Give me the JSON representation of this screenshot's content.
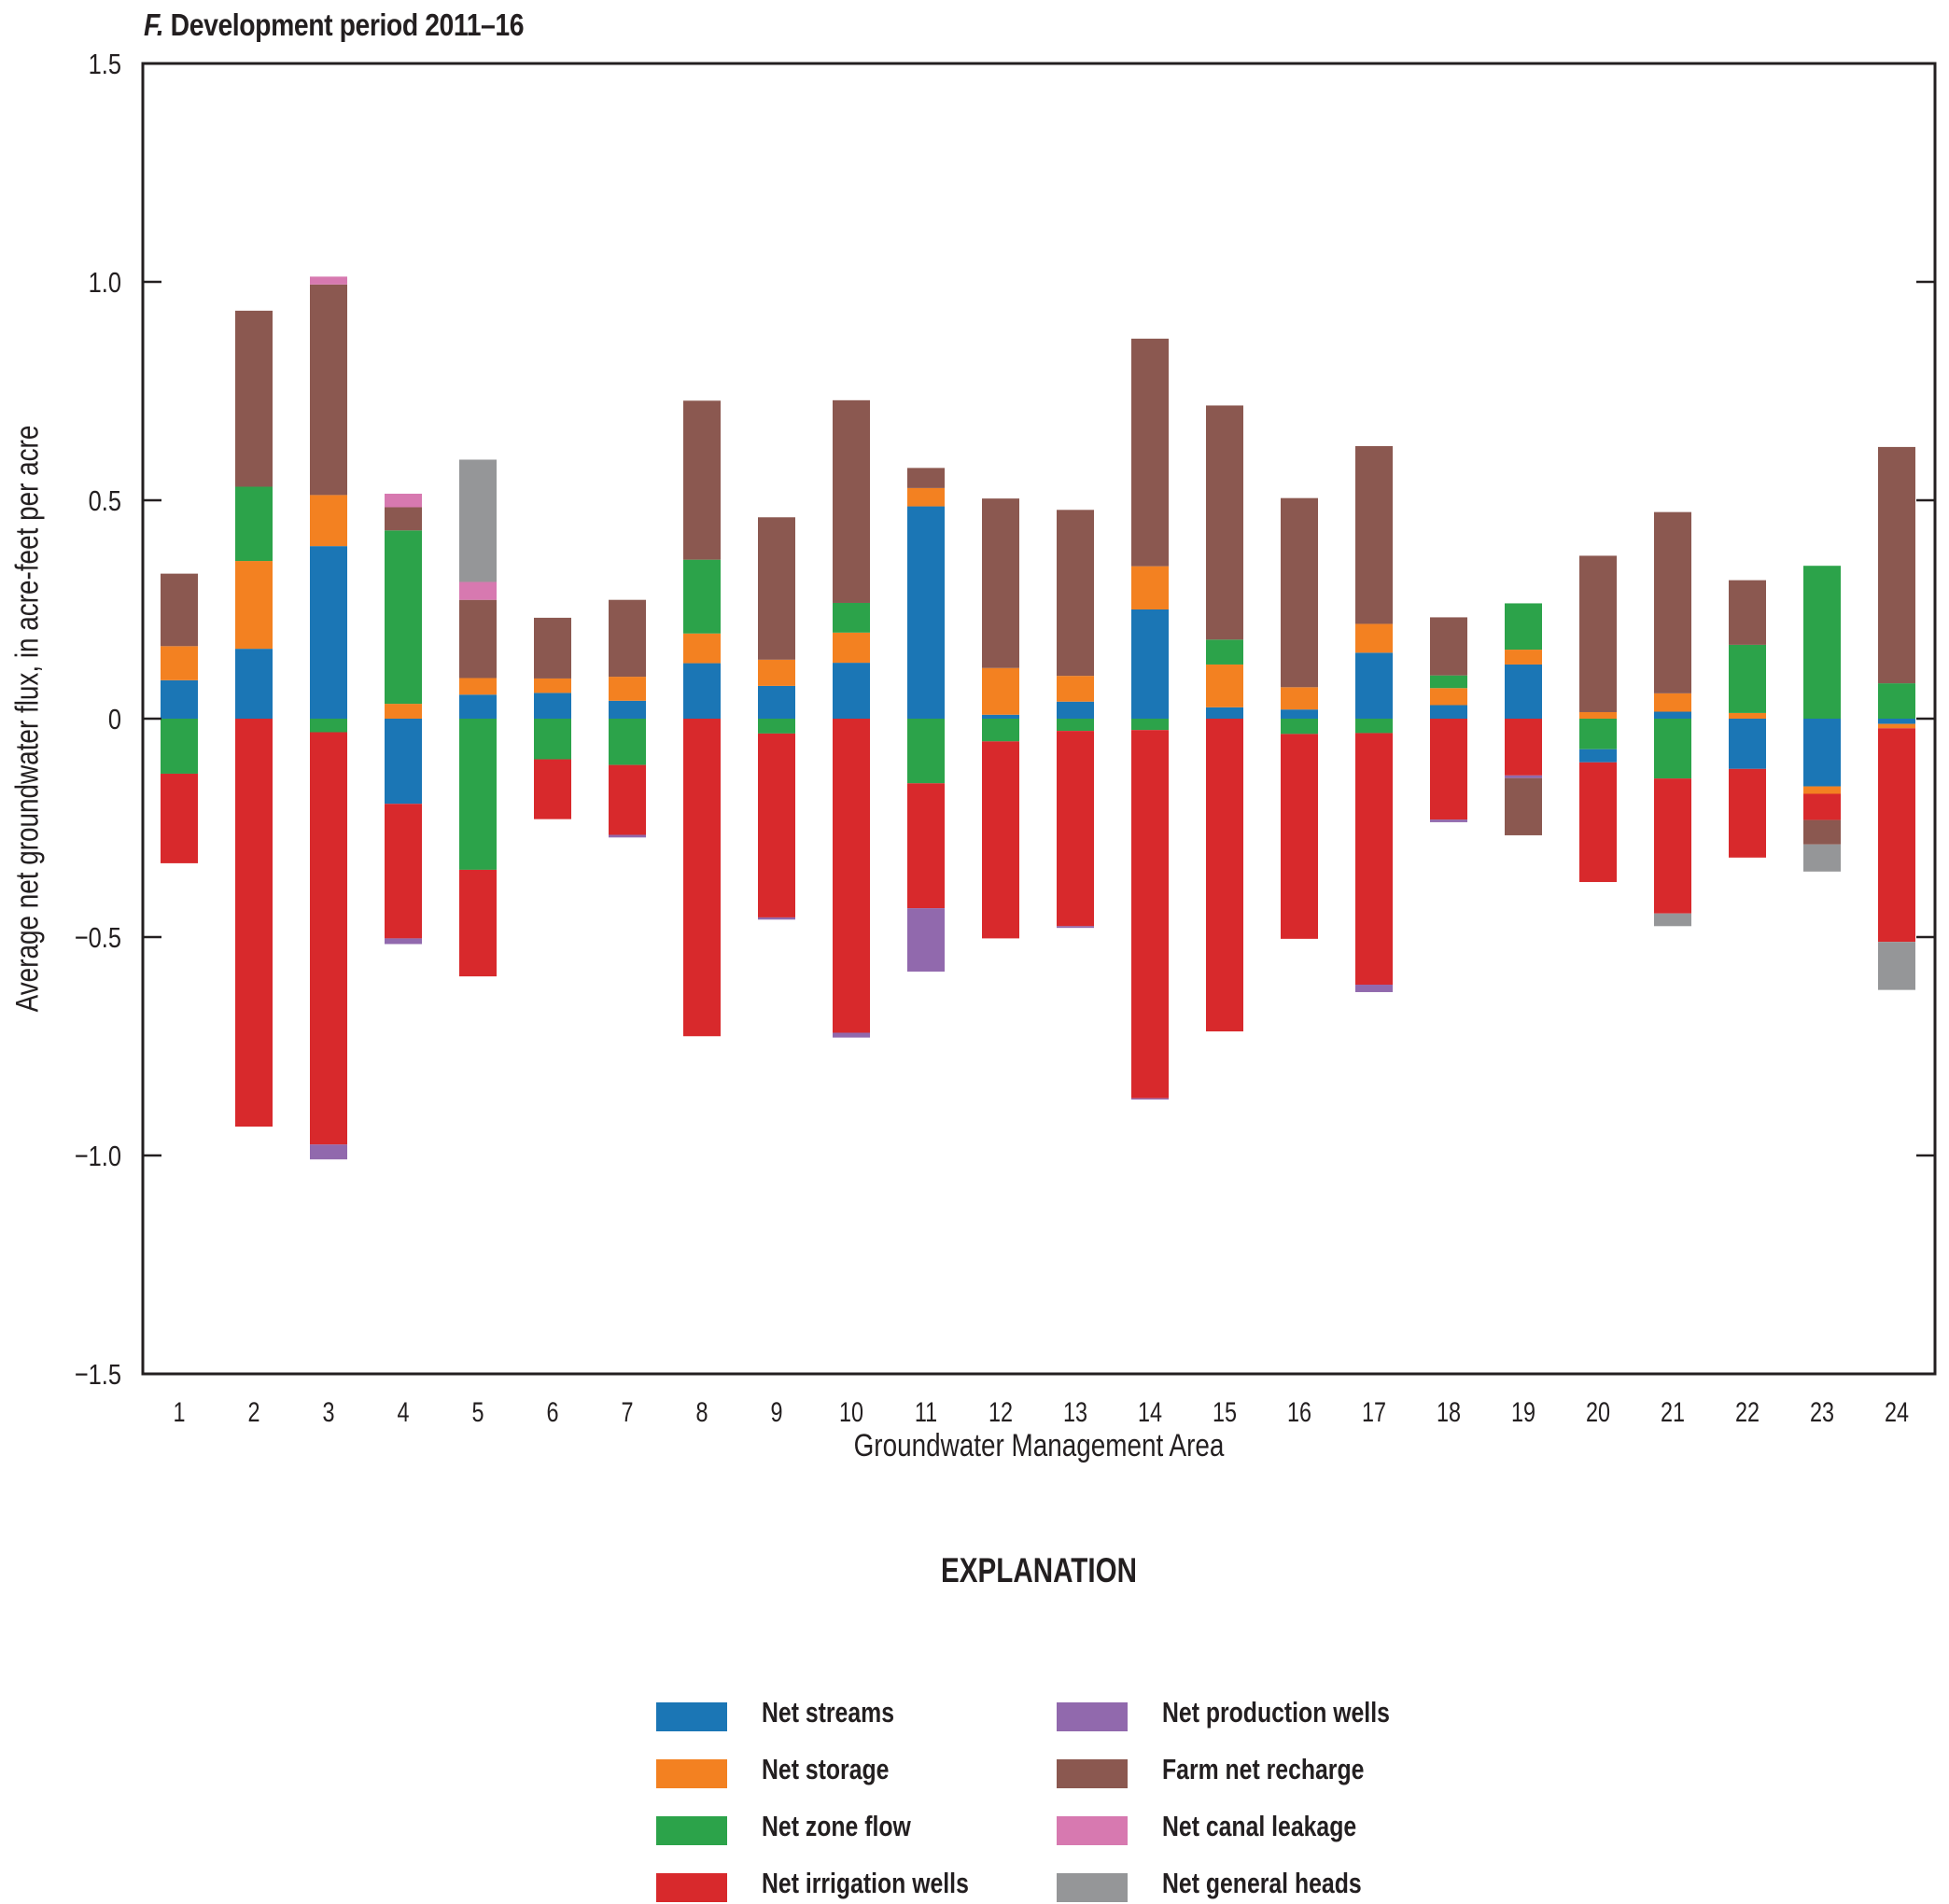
{
  "chart_data": {
    "type": "bar",
    "stacked": true,
    "title_prefix": "F.",
    "title": "Development period 2011–16",
    "xlabel": "Groundwater Management Area",
    "ylabel": "Average net groundwater flux, in acre-feet per acre",
    "ylim": [
      -1.5,
      1.5
    ],
    "yticks": [
      1.5,
      1.0,
      0.5,
      0,
      -0.5,
      -1.0,
      -1.5
    ],
    "ytick_labels": [
      "1.5",
      "1.0",
      "0.5",
      "0",
      "−0.5",
      "−1.0",
      "−1.5"
    ],
    "grid": false,
    "legend_title": "EXPLANATION",
    "legend_position": "bottom-center",
    "categories": [
      "1",
      "2",
      "3",
      "4",
      "5",
      "6",
      "7",
      "8",
      "9",
      "10",
      "11",
      "12",
      "13",
      "14",
      "15",
      "16",
      "17",
      "18",
      "19",
      "20",
      "21",
      "22",
      "23",
      "24"
    ],
    "series": [
      {
        "name": "Net streams",
        "color": "#1b76b5",
        "values": [
          0.088,
          0.16,
          0.395,
          -0.195,
          0.055,
          0.059,
          0.041,
          0.127,
          0.075,
          0.128,
          0.486,
          0.009,
          0.039,
          0.25,
          0.026,
          0.021,
          0.151,
          0.031,
          0.124,
          -0.03,
          0.016,
          -0.115,
          -0.155,
          -0.012
        ]
      },
      {
        "name": "Net storage",
        "color": "#f38121",
        "values": [
          0.078,
          0.201,
          0.117,
          0.034,
          0.038,
          0.033,
          0.055,
          0.068,
          0.06,
          0.069,
          0.042,
          0.107,
          0.059,
          0.099,
          0.098,
          0.051,
          0.066,
          0.039,
          0.034,
          0.015,
          0.042,
          0.013,
          -0.017,
          -0.01
        ]
      },
      {
        "name": "Net zone flow",
        "color": "#2ca34a",
        "values": [
          -0.126,
          0.17,
          -0.031,
          0.397,
          -0.346,
          -0.093,
          -0.106,
          0.169,
          -0.034,
          0.068,
          -0.148,
          -0.052,
          -0.028,
          -0.026,
          0.057,
          -0.035,
          -0.033,
          0.029,
          0.106,
          -0.07,
          -0.137,
          0.156,
          0.35,
          0.081
        ]
      },
      {
        "name": "Net irrigation wells",
        "color": "#d8292c",
        "values": [
          -0.205,
          -0.934,
          -0.944,
          -0.308,
          -0.244,
          -0.137,
          -0.16,
          -0.727,
          -0.421,
          -0.719,
          -0.286,
          -0.451,
          -0.447,
          -0.843,
          -0.716,
          -0.469,
          -0.576,
          -0.231,
          -0.13,
          -0.274,
          -0.309,
          -0.203,
          -0.06,
          -0.489
        ]
      },
      {
        "name": "Net production wells",
        "color": "#9169ad",
        "values": [
          0,
          0,
          -0.034,
          -0.013,
          0,
          0,
          -0.006,
          0,
          -0.005,
          -0.011,
          -0.145,
          0,
          -0.004,
          -0.003,
          0,
          0,
          -0.017,
          -0.006,
          -0.006,
          0,
          0,
          0,
          0,
          0
        ]
      },
      {
        "name": "Farm net recharge",
        "color": "#8b5850",
        "values": [
          0.166,
          0.403,
          0.482,
          0.053,
          0.179,
          0.139,
          0.176,
          0.364,
          0.326,
          0.464,
          0.046,
          0.388,
          0.38,
          0.521,
          0.536,
          0.433,
          0.407,
          0.133,
          -0.131,
          0.358,
          0.415,
          0.148,
          -0.056,
          0.541
        ]
      },
      {
        "name": "Net canal leakage",
        "color": "#d779b0",
        "values": [
          0,
          0,
          0.018,
          0.031,
          0.041,
          0,
          0,
          0,
          0,
          0,
          0,
          0,
          0,
          0,
          0,
          0,
          0,
          0,
          0,
          0,
          0,
          0,
          0,
          0
        ]
      },
      {
        "name": "Net general heads",
        "color": "#959698",
        "values": [
          0,
          0,
          0,
          0,
          0.28,
          0,
          0,
          0,
          0,
          0,
          0,
          0,
          0,
          0,
          0,
          0,
          0,
          0,
          0,
          0,
          -0.029,
          0,
          -0.062,
          -0.11
        ]
      }
    ]
  },
  "legend": {
    "title": "EXPLANATION",
    "items": [
      {
        "label": "Net streams",
        "color": "#1b76b5"
      },
      {
        "label": "Net storage",
        "color": "#f38121"
      },
      {
        "label": "Net zone flow",
        "color": "#2ca34a"
      },
      {
        "label": "Net irrigation wells",
        "color": "#d8292c"
      },
      {
        "label": "Net production wells",
        "color": "#9169ad"
      },
      {
        "label": "Farm net recharge",
        "color": "#8b5850"
      },
      {
        "label": "Net canal leakage",
        "color": "#d779b0"
      },
      {
        "label": "Net general heads",
        "color": "#959698"
      }
    ]
  }
}
